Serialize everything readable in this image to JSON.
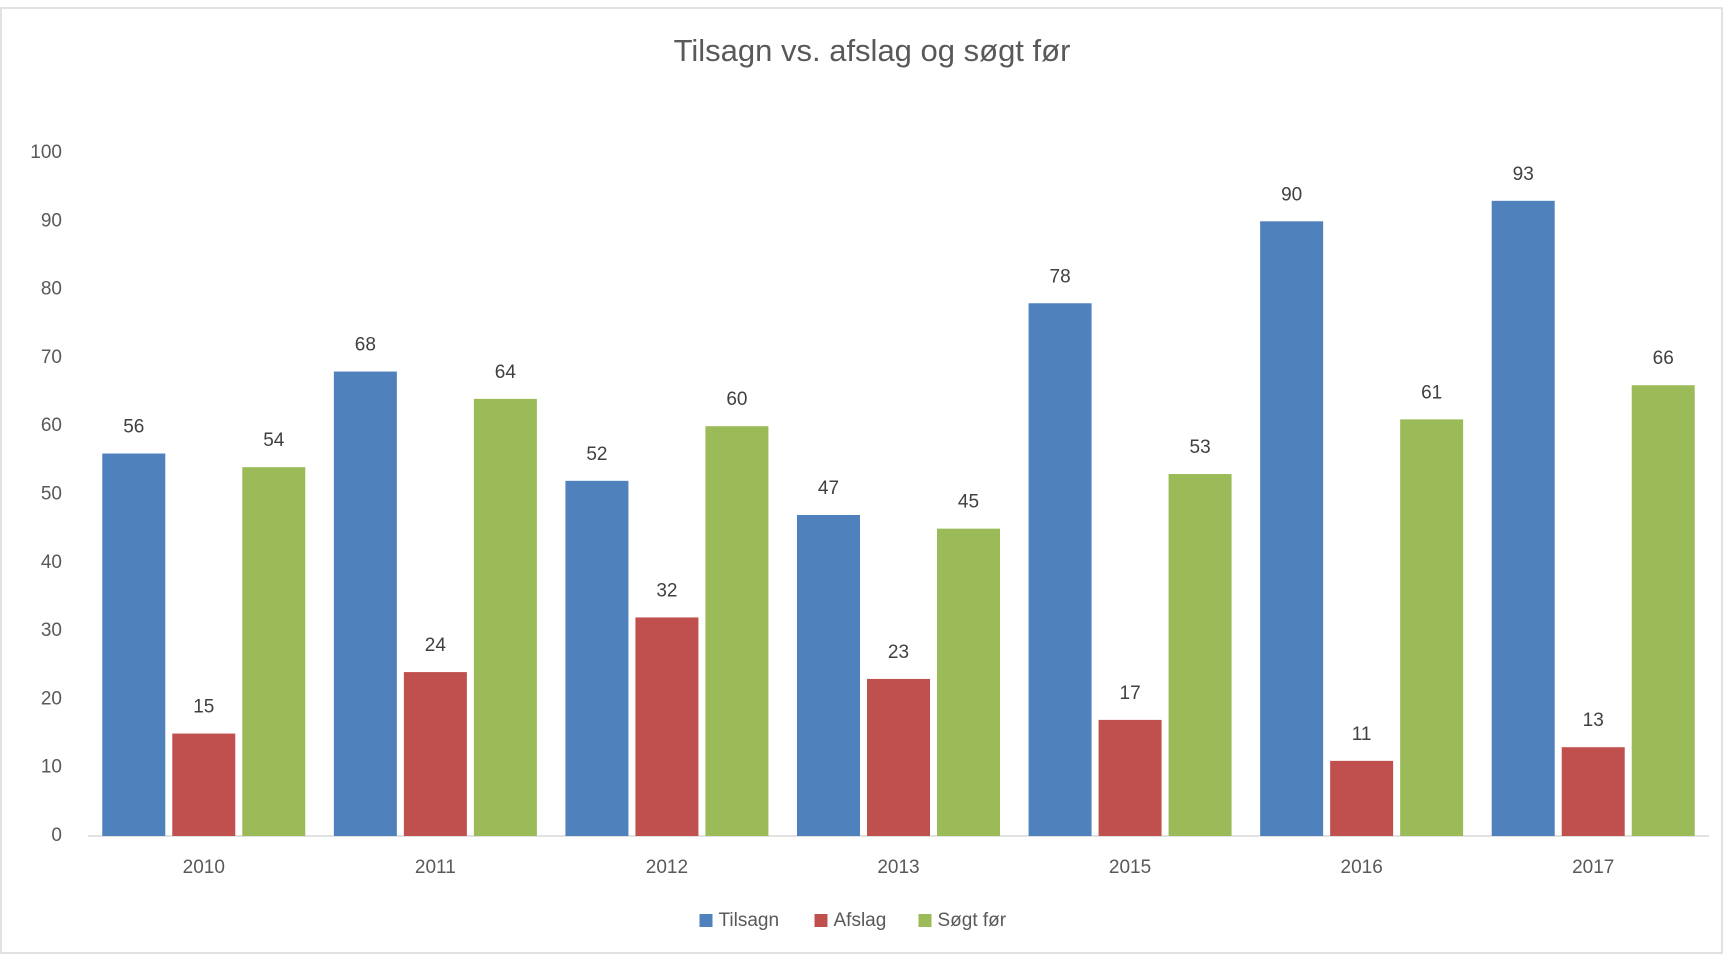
{
  "chart_data": {
    "type": "bar",
    "title": "Tilsagn vs. afslag og søgt før",
    "categories": [
      "2010",
      "2011",
      "2012",
      "2013",
      "2015",
      "2016",
      "2017"
    ],
    "series": [
      {
        "name": "Tilsagn",
        "color": "#4f81bd",
        "values": [
          56,
          68,
          52,
          47,
          78,
          90,
          93
        ]
      },
      {
        "name": "Afslag",
        "color": "#c0504d",
        "values": [
          15,
          24,
          32,
          23,
          17,
          11,
          13
        ]
      },
      {
        "name": "Søgt før",
        "color": "#9bbb59",
        "values": [
          54,
          64,
          60,
          45,
          53,
          61,
          66
        ]
      }
    ],
    "ylim": [
      0,
      100
    ],
    "yticks": [
      0,
      10,
      20,
      30,
      40,
      50,
      60,
      70,
      80,
      90,
      100
    ],
    "grid": false,
    "legend": "bottom",
    "data_labels": true
  }
}
